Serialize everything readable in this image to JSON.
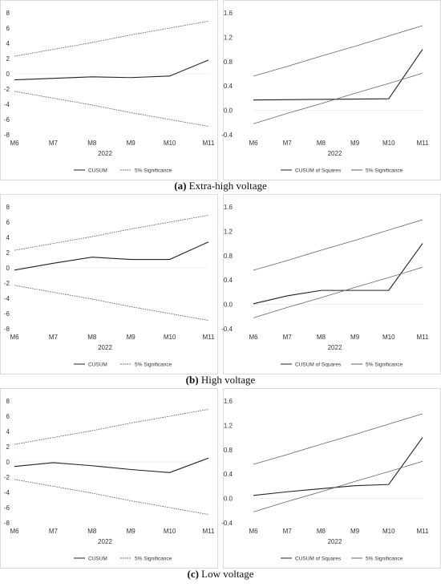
{
  "panels": [
    {
      "id": "a",
      "caption_letter": "(a)",
      "caption_text": " Extra-high voltage",
      "charts": [
        {
          "type": "line",
          "x": [
            "M6",
            "M7",
            "M8",
            "M9",
            "M10",
            "M11"
          ],
          "xlabel": "2022",
          "ylim": [
            -8,
            8
          ],
          "yticks": [
            "-8",
            "-6",
            "-4",
            "-2",
            "0",
            "2",
            "4",
            "6",
            "8"
          ],
          "series": [
            {
              "name": "CUSUM",
              "style": "solid",
              "values": [
                -0.8,
                -0.6,
                -0.4,
                -0.5,
                -0.3,
                1.8
              ]
            },
            {
              "name": "5% Significance",
              "style": "dashed",
              "values": [
                2.3,
                3.2,
                4.1,
                5.1,
                6.0,
                6.9
              ]
            },
            {
              "name": "",
              "style": "dashed",
              "values": [
                -2.3,
                -3.2,
                -4.1,
                -5.1,
                -6.0,
                -6.9
              ]
            }
          ],
          "legend": [
            "CUSUM",
            "5% Significance"
          ]
        },
        {
          "type": "line",
          "x": [
            "M6",
            "M7",
            "M8",
            "M9",
            "M10",
            "M11"
          ],
          "xlabel": "2022",
          "ylim": [
            -0.4,
            1.6
          ],
          "yticks": [
            "-0.4",
            "0.0",
            "0.4",
            "0.8",
            "1.2",
            "1.6"
          ],
          "series": [
            {
              "name": "CUSUM of Squares",
              "style": "solid",
              "values": [
                0.17,
                0.175,
                0.18,
                0.185,
                0.19,
                1.0
              ]
            },
            {
              "name": "5% Significance",
              "style": "solid",
              "values": [
                0.56,
                0.72,
                0.89,
                1.05,
                1.22,
                1.39
              ]
            },
            {
              "name": "",
              "style": "solid",
              "values": [
                -0.22,
                -0.05,
                0.11,
                0.28,
                0.44,
                0.61
              ]
            }
          ],
          "legend": [
            "CUSUM of Squares",
            "5% Significance"
          ]
        }
      ]
    },
    {
      "id": "b",
      "caption_letter": "(b)",
      "caption_text": " High voltage",
      "charts": [
        {
          "type": "line",
          "x": [
            "M6",
            "M7",
            "M8",
            "M9",
            "M10",
            "M11"
          ],
          "xlabel": "2022",
          "ylim": [
            -8,
            8
          ],
          "yticks": [
            "-8",
            "-6",
            "-4",
            "-2",
            "0",
            "2",
            "4",
            "6",
            "8"
          ],
          "series": [
            {
              "name": "CUSUM",
              "style": "solid",
              "values": [
                -0.3,
                0.6,
                1.4,
                1.1,
                1.1,
                3.4
              ]
            },
            {
              "name": "5% Significance",
              "style": "dashed",
              "values": [
                2.3,
                3.2,
                4.1,
                5.1,
                6.0,
                6.9
              ]
            },
            {
              "name": "",
              "style": "dashed",
              "values": [
                -2.3,
                -3.2,
                -4.1,
                -5.1,
                -6.0,
                -6.9
              ]
            }
          ],
          "legend": [
            "CUSUM",
            "5% Significance"
          ]
        },
        {
          "type": "line",
          "x": [
            "M6",
            "M7",
            "M8",
            "M9",
            "M10",
            "M11"
          ],
          "xlabel": "2022",
          "ylim": [
            -0.4,
            1.6
          ],
          "yticks": [
            "-0.4",
            "0.0",
            "0.4",
            "0.8",
            "1.2",
            "1.6"
          ],
          "series": [
            {
              "name": "CUSUM of Squares",
              "style": "solid",
              "values": [
                0.01,
                0.14,
                0.23,
                0.23,
                0.23,
                1.0
              ]
            },
            {
              "name": "5% Significance",
              "style": "solid",
              "values": [
                0.56,
                0.72,
                0.89,
                1.05,
                1.22,
                1.39
              ]
            },
            {
              "name": "",
              "style": "solid",
              "values": [
                -0.22,
                -0.05,
                0.11,
                0.28,
                0.44,
                0.61
              ]
            }
          ],
          "legend": [
            "CUSUM of Squares",
            "5% Significance"
          ]
        }
      ]
    },
    {
      "id": "c",
      "caption_letter": "(c)",
      "caption_text": " Low voltage",
      "charts": [
        {
          "type": "line",
          "x": [
            "M6",
            "M7",
            "M8",
            "M9",
            "M10",
            "M11"
          ],
          "xlabel": "2022",
          "ylim": [
            -8,
            8
          ],
          "yticks": [
            "-8",
            "-6",
            "-4",
            "-2",
            "0",
            "2",
            "4",
            "6",
            "8"
          ],
          "series": [
            {
              "name": "CUSUM",
              "style": "solid",
              "values": [
                -0.6,
                -0.1,
                -0.5,
                -1.0,
                -1.4,
                0.5
              ]
            },
            {
              "name": "5% Significance",
              "style": "dashed",
              "values": [
                2.3,
                3.2,
                4.1,
                5.1,
                6.0,
                6.9
              ]
            },
            {
              "name": "",
              "style": "dashed",
              "values": [
                -2.3,
                -3.2,
                -4.1,
                -5.1,
                -6.0,
                -6.9
              ]
            }
          ],
          "legend": [
            "CUSUM",
            "5% Significance"
          ]
        },
        {
          "type": "line",
          "x": [
            "M6",
            "M7",
            "M8",
            "M9",
            "M10",
            "M11"
          ],
          "xlabel": "2022",
          "ylim": [
            -0.4,
            1.6
          ],
          "yticks": [
            "-0.4",
            "0.0",
            "0.4",
            "0.8",
            "1.2",
            "1.6"
          ],
          "series": [
            {
              "name": "CUSUM of Squares",
              "style": "solid",
              "values": [
                0.05,
                0.11,
                0.16,
                0.21,
                0.23,
                1.0
              ]
            },
            {
              "name": "5% Significance",
              "style": "solid",
              "values": [
                0.56,
                0.72,
                0.89,
                1.05,
                1.22,
                1.39
              ]
            },
            {
              "name": "",
              "style": "solid",
              "values": [
                -0.22,
                -0.05,
                0.11,
                0.28,
                0.44,
                0.61
              ]
            }
          ],
          "legend": [
            "CUSUM of Squares",
            "5% Significance"
          ]
        }
      ]
    }
  ],
  "chart_data": [
    {
      "panel": "a",
      "type": "line",
      "x": [
        "M6",
        "M7",
        "M8",
        "M9",
        "M10",
        "M11"
      ],
      "xlabel": "2022",
      "ylim": [
        -8,
        8
      ],
      "series": [
        {
          "name": "CUSUM",
          "values": [
            -0.8,
            -0.6,
            -0.4,
            -0.5,
            -0.3,
            1.8
          ]
        },
        {
          "name": "5% Significance",
          "values": [
            2.3,
            3.2,
            4.1,
            5.1,
            6.0,
            6.9
          ]
        },
        {
          "name": "",
          "values": [
            -2.3,
            -3.2,
            -4.1,
            -5.1,
            -6.0,
            -6.9
          ]
        }
      ]
    },
    {
      "panel": "a",
      "type": "line",
      "x": [
        "M6",
        "M7",
        "M8",
        "M9",
        "M10",
        "M11"
      ],
      "xlabel": "2022",
      "ylim": [
        -0.4,
        1.6
      ],
      "series": [
        {
          "name": "CUSUM of Squares",
          "values": [
            0.17,
            0.175,
            0.18,
            0.185,
            0.19,
            1.0
          ]
        },
        {
          "name": "5% Significance",
          "values": [
            0.56,
            0.72,
            0.89,
            1.05,
            1.22,
            1.39
          ]
        },
        {
          "name": "",
          "values": [
            -0.22,
            -0.05,
            0.11,
            0.28,
            0.44,
            0.61
          ]
        }
      ]
    },
    {
      "panel": "b",
      "type": "line",
      "x": [
        "M6",
        "M7",
        "M8",
        "M9",
        "M10",
        "M11"
      ],
      "xlabel": "2022",
      "ylim": [
        -8,
        8
      ],
      "series": [
        {
          "name": "CUSUM",
          "values": [
            -0.3,
            0.6,
            1.4,
            1.1,
            1.1,
            3.4
          ]
        },
        {
          "name": "5% Significance",
          "values": [
            2.3,
            3.2,
            4.1,
            5.1,
            6.0,
            6.9
          ]
        },
        {
          "name": "",
          "values": [
            -2.3,
            -3.2,
            -4.1,
            -5.1,
            -6.0,
            -6.9
          ]
        }
      ]
    },
    {
      "panel": "b",
      "type": "line",
      "x": [
        "M6",
        "M7",
        "M8",
        "M9",
        "M10",
        "M11"
      ],
      "xlabel": "2022",
      "ylim": [
        -0.4,
        1.6
      ],
      "series": [
        {
          "name": "CUSUM of Squares",
          "values": [
            0.01,
            0.14,
            0.23,
            0.23,
            0.23,
            1.0
          ]
        },
        {
          "name": "5% Significance",
          "values": [
            0.56,
            0.72,
            0.89,
            1.05,
            1.22,
            1.39
          ]
        },
        {
          "name": "",
          "values": [
            -0.22,
            -0.05,
            0.11,
            0.28,
            0.44,
            0.61
          ]
        }
      ]
    },
    {
      "panel": "c",
      "type": "line",
      "x": [
        "M6",
        "M7",
        "M8",
        "M9",
        "M10",
        "M11"
      ],
      "xlabel": "2022",
      "ylim": [
        -8,
        8
      ],
      "series": [
        {
          "name": "CUSUM",
          "values": [
            -0.6,
            -0.1,
            -0.5,
            -1.0,
            -1.4,
            0.5
          ]
        },
        {
          "name": "5% Significance",
          "values": [
            2.3,
            3.2,
            4.1,
            5.1,
            6.0,
            6.9
          ]
        },
        {
          "name": "",
          "values": [
            -2.3,
            -3.2,
            -4.1,
            -5.1,
            -6.0,
            -6.9
          ]
        }
      ]
    },
    {
      "panel": "c",
      "type": "line",
      "x": [
        "M6",
        "M7",
        "M8",
        "M9",
        "M10",
        "M11"
      ],
      "xlabel": "2022",
      "ylim": [
        -0.4,
        1.6
      ],
      "series": [
        {
          "name": "CUSUM of Squares",
          "values": [
            0.05,
            0.11,
            0.16,
            0.21,
            0.23,
            1.0
          ]
        },
        {
          "name": "5% Significance",
          "values": [
            0.56,
            0.72,
            0.89,
            1.05,
            1.22,
            1.39
          ]
        },
        {
          "name": "",
          "values": [
            -0.22,
            -0.05,
            0.11,
            0.28,
            0.44,
            0.61
          ]
        }
      ]
    }
  ]
}
